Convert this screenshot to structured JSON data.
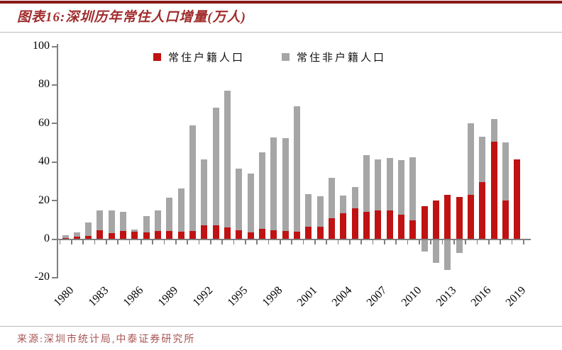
{
  "header": {
    "title": "图表16:深圳历年常住人口增量(万人)"
  },
  "footer": {
    "source": "来源:深圳市统计局,中泰证券研究所"
  },
  "colors": {
    "accent_rule": "#8B1A1A",
    "title_text": "#A02C2C",
    "source_text": "#A85454",
    "divider": "#BBBBBB",
    "axis": "#808080",
    "registered_bar": "#C01212",
    "nonregistered_bar": "#A6A6A6"
  },
  "chart_data": {
    "type": "bar",
    "stacked": true,
    "title": "深圳历年常住人口增量(万人)",
    "unit": "万人",
    "grid": false,
    "legend_position": "top",
    "ylim": [
      -20,
      100
    ],
    "yticks": [
      -20,
      0,
      20,
      40,
      60,
      80,
      100
    ],
    "xtick_label_step": 3,
    "categories": [
      1980,
      1981,
      1982,
      1983,
      1984,
      1985,
      1986,
      1987,
      1988,
      1989,
      1990,
      1991,
      1992,
      1993,
      1994,
      1995,
      1996,
      1997,
      1998,
      1999,
      2000,
      2001,
      2002,
      2003,
      2004,
      2005,
      2006,
      2007,
      2008,
      2009,
      2010,
      2011,
      2012,
      2013,
      2014,
      2015,
      2016,
      2017,
      2018,
      2019
    ],
    "series": [
      {
        "name": "常住户籍人口",
        "color": "#C01212",
        "values": [
          0.5,
          1.0,
          1.5,
          4.5,
          3.0,
          4.0,
          3.6,
          3.4,
          4.0,
          4.0,
          3.5,
          4.0,
          7.0,
          7.0,
          6.0,
          4.4,
          3.4,
          5.0,
          4.3,
          4.0,
          3.8,
          6.2,
          6.2,
          10.6,
          13.2,
          15.7,
          14.0,
          14.7,
          14.7,
          12.5,
          9.6,
          16.9,
          19.7,
          22.9,
          21.7,
          22.8,
          29.5,
          50.2,
          20.0,
          41.2
        ]
      },
      {
        "name": "常住非户籍人口",
        "color": "#A6A6A6",
        "values": [
          1.4,
          2.4,
          6.8,
          10.1,
          11.6,
          10.0,
          1.0,
          8.5,
          10.7,
          17.5,
          22.7,
          55.0,
          34.3,
          61.0,
          70.7,
          32.0,
          30.3,
          39.9,
          48.3,
          48.2,
          64.9,
          17.1,
          15.9,
          21.1,
          9.3,
          11.3,
          29.4,
          26.6,
          27.2,
          28.2,
          32.6,
          -5.9,
          -11.7,
          -15.5,
          -6.7,
          37.2,
          23.4,
          11.8,
          29.9,
          0
        ]
      }
    ]
  }
}
